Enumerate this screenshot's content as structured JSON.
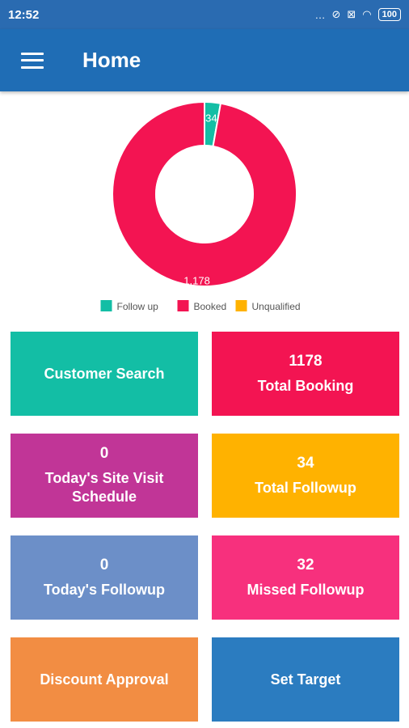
{
  "status_bar": {
    "time": "12:52",
    "icons": "…",
    "battery": "100"
  },
  "app_bar": {
    "title": "Home"
  },
  "chart_data": {
    "type": "pie",
    "categories": [
      "Follow up",
      "Booked",
      "Unqualified"
    ],
    "values": [
      34,
      1178,
      0
    ],
    "labels": [
      "34",
      "1,178",
      ""
    ],
    "colors": [
      "#13bea5",
      "#f31452",
      "#ffb200"
    ],
    "legend": "bottom"
  },
  "tiles": {
    "customer_search": {
      "label": "Customer Search"
    },
    "total_booking": {
      "value": "1178",
      "label": "Total Booking"
    },
    "site_visit": {
      "value": "0",
      "label": "Today's Site Visit Schedule"
    },
    "total_followup": {
      "value": "34",
      "label": "Total Followup"
    },
    "todays_followup": {
      "value": "0",
      "label": "Today's Followup"
    },
    "missed_followup": {
      "value": "32",
      "label": "Missed Followup"
    },
    "discount_approval": {
      "label": "Discount Approval"
    },
    "set_target": {
      "label": "Set Target"
    }
  }
}
